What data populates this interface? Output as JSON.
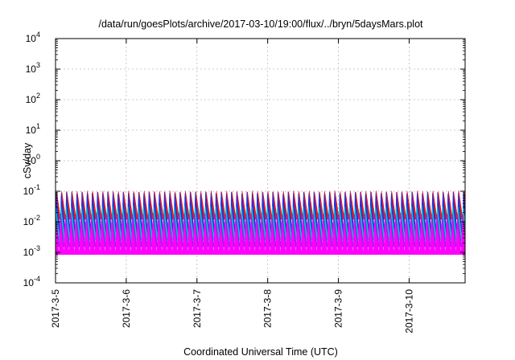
{
  "chart_data": {
    "type": "area",
    "title": "/data/run/goesPlots/archive/2017-03-10/19:00/flux/../bryn/5daysMars.plot",
    "xlabel": "Coordinated Universal Time (UTC)",
    "ylabel": "cSv/day",
    "yscale": "log",
    "ylim": [
      0.0001,
      10000
    ],
    "y_ticks": [
      {
        "base": "10",
        "exp": "-4",
        "value": 0.0001
      },
      {
        "base": "10",
        "exp": "-3",
        "value": 0.001
      },
      {
        "base": "10",
        "exp": "-2",
        "value": 0.01
      },
      {
        "base": "10",
        "exp": "-1",
        "value": 0.1
      },
      {
        "base": "10",
        "exp": "0",
        "value": 1
      },
      {
        "base": "10",
        "exp": "1",
        "value": 10
      },
      {
        "base": "10",
        "exp": "2",
        "value": 100
      },
      {
        "base": "10",
        "exp": "3",
        "value": 1000
      },
      {
        "base": "10",
        "exp": "4",
        "value": 10000
      }
    ],
    "x_ticks": [
      "2017-3-5",
      "2017-3-6",
      "2017-3-7",
      "2017-3-8",
      "2017-3-9",
      "2017-3-10"
    ],
    "xlim": [
      "2017-03-05T00:00",
      "2017-03-10T19:00"
    ],
    "grid": true,
    "legend": "none",
    "oscillation_period_hours": 1.75,
    "series": [
      {
        "color": "#ff0000",
        "min": 0.012,
        "max": 0.105
      },
      {
        "color": "#2233dd",
        "min": 0.004,
        "max": 0.1
      },
      {
        "color": "#00c8c8",
        "min": 0.0025,
        "max": 0.035
      },
      {
        "color": "#8a2be2",
        "min": 0.0015,
        "max": 0.02
      },
      {
        "color": "#ff00ff",
        "min": 0.00085,
        "max": 0.012
      }
    ],
    "colors": {
      "axis": "#000000",
      "grid": "#bbbbbb"
    }
  }
}
